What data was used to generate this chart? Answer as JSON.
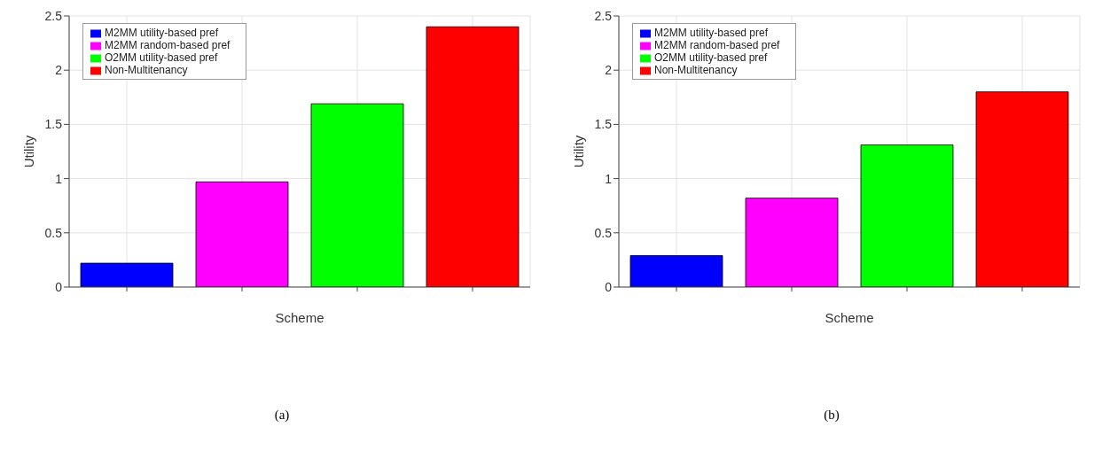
{
  "chart_data": [
    {
      "type": "bar",
      "categories": [
        null,
        null,
        null,
        null
      ],
      "xlabel": "Scheme",
      "ylabel": "Utility",
      "ylim": [
        0,
        2.5
      ],
      "yticks": [
        0,
        0.5,
        1,
        1.5,
        2,
        2.5
      ],
      "grid": true,
      "legend": "top left",
      "annotations": [
        "(a)"
      ],
      "series": [
        {
          "name": "M2MM utility-based pref",
          "color": "#0000ff",
          "values": [
            0.22,
            null,
            null,
            null
          ]
        },
        {
          "name": "M2MM random-based pref",
          "color": "#ff00ff",
          "values": [
            null,
            0.97,
            null,
            null
          ]
        },
        {
          "name": "O2MM utility-based pref",
          "color": "#00ff00",
          "values": [
            null,
            null,
            1.69,
            null
          ]
        },
        {
          "name": "Non-Multitenancy",
          "color": "#ff0000",
          "values": [
            null,
            null,
            null,
            2.4
          ]
        }
      ]
    },
    {
      "type": "bar",
      "categories": [
        null,
        null,
        null,
        null
      ],
      "xlabel": "Scheme",
      "ylabel": "Utility",
      "ylim": [
        0,
        2.5
      ],
      "yticks": [
        0,
        0.5,
        1,
        1.5,
        2,
        2.5
      ],
      "grid": true,
      "legend": "top left",
      "annotations": [
        "(b)"
      ],
      "series": [
        {
          "name": "M2MM utility-based pref",
          "color": "#0000ff",
          "values": [
            0.29,
            null,
            null,
            null
          ]
        },
        {
          "name": "M2MM random-based pref",
          "color": "#ff00ff",
          "values": [
            null,
            0.82,
            null,
            null
          ]
        },
        {
          "name": "O2MM utility-based pref",
          "color": "#00ff00",
          "values": [
            null,
            null,
            1.31,
            null
          ]
        },
        {
          "name": "Non-Multitenancy",
          "color": "#ff0000",
          "values": [
            null,
            null,
            null,
            1.8
          ]
        }
      ]
    }
  ]
}
